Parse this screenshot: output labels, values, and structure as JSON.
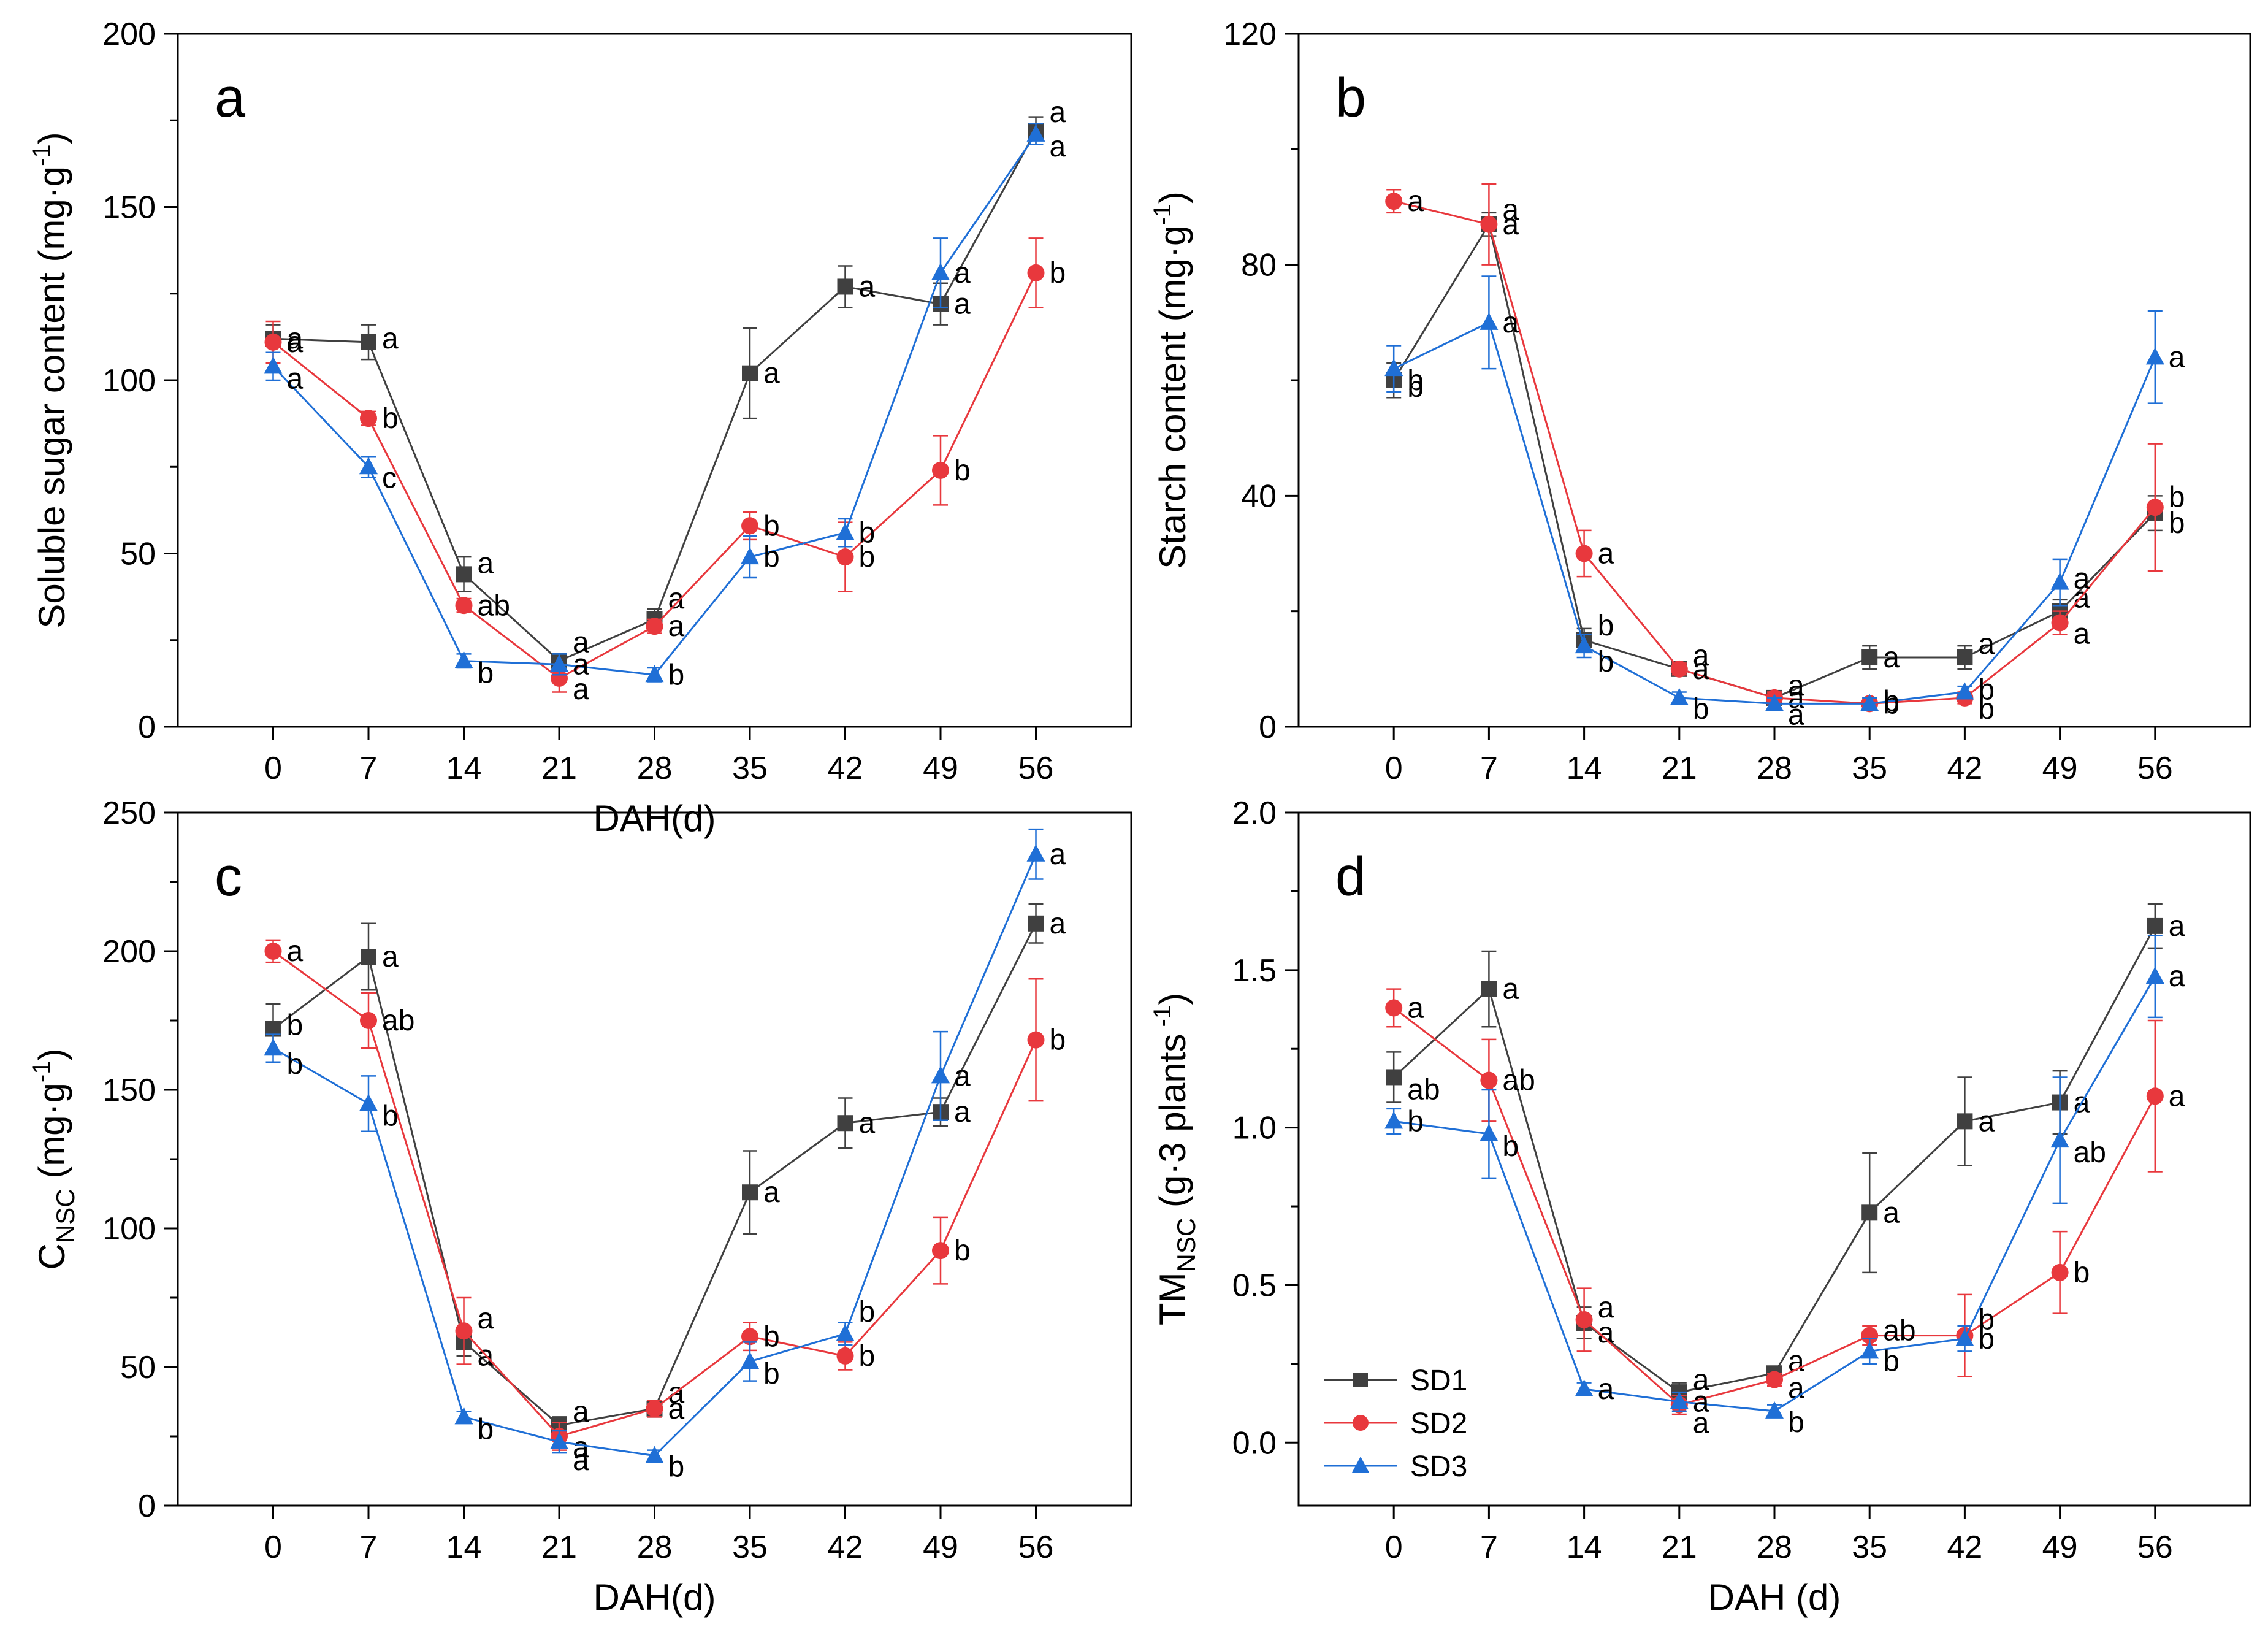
{
  "colors": {
    "SD1": "#404040",
    "SD2": "#e8383d",
    "SD3": "#1f6fd6"
  },
  "legend": [
    "SD1",
    "SD2",
    "SD3"
  ],
  "chart_data": [
    {
      "type": "line",
      "panel": "a",
      "x": [
        0,
        7,
        14,
        21,
        28,
        35,
        42,
        49,
        56
      ],
      "ylim": [
        0,
        200
      ],
      "yticks": [
        0,
        50,
        100,
        150,
        200
      ],
      "ylabel": "Soluble sugar content (mg·g",
      "ylabel_sup": "-1",
      "ylabel_end": ")",
      "xlabel": "DAH(d)",
      "series": [
        {
          "name": "SD1",
          "marker": "square",
          "values": [
            112,
            111,
            44,
            19,
            31,
            102,
            127,
            122,
            172
          ],
          "err": [
            4,
            5,
            5,
            2,
            3,
            13,
            6,
            6,
            4
          ],
          "sig": [
            "a",
            "a",
            "a",
            "a",
            "a",
            "a",
            "a",
            "a",
            "a"
          ]
        },
        {
          "name": "SD2",
          "marker": "circle",
          "values": [
            111,
            89,
            35,
            14,
            29,
            58,
            49,
            74,
            131
          ],
          "err": [
            6,
            2,
            2,
            4,
            2,
            4,
            10,
            10,
            10
          ],
          "sig": [
            "a",
            "b",
            "ab",
            "a",
            "a",
            "b",
            "b",
            "b",
            "b"
          ]
        },
        {
          "name": "SD3",
          "marker": "triangle",
          "values": [
            104,
            75,
            19,
            18,
            15,
            49,
            56,
            131,
            171
          ],
          "err": [
            4,
            3,
            2,
            3,
            2,
            6,
            4,
            10,
            3
          ],
          "sig": [
            "a",
            "c",
            "b",
            "a",
            "b",
            "b",
            "b",
            "a",
            "a"
          ]
        }
      ]
    },
    {
      "type": "line",
      "panel": "b",
      "x": [
        0,
        7,
        14,
        21,
        28,
        35,
        42,
        49,
        56
      ],
      "ylim": [
        0,
        120
      ],
      "yticks": [
        0,
        40,
        80,
        120
      ],
      "ylabel": "Starch content (mg·g",
      "ylabel_sup": "-1",
      "ylabel_end": ")",
      "xlabel": "",
      "series": [
        {
          "name": "SD1",
          "marker": "square",
          "values": [
            60,
            87,
            15,
            10,
            5,
            12,
            12,
            20,
            37
          ],
          "err": [
            3,
            2,
            2,
            1,
            1,
            2,
            2,
            2,
            3
          ],
          "sig": [
            "b",
            "a",
            "b",
            "a",
            "a",
            "a",
            "a",
            "a",
            "b"
          ]
        },
        {
          "name": "SD2",
          "marker": "circle",
          "values": [
            91,
            87,
            30,
            10,
            5,
            4,
            5,
            18,
            38
          ],
          "err": [
            2,
            7,
            4,
            1,
            1,
            1,
            1,
            2,
            11
          ],
          "sig": [
            "a",
            "a",
            "a",
            "a",
            "a",
            "b",
            "b",
            "a",
            "b"
          ]
        },
        {
          "name": "SD3",
          "marker": "triangle",
          "values": [
            62,
            70,
            14,
            5,
            4,
            4,
            6,
            25,
            64
          ],
          "err": [
            4,
            8,
            2,
            1,
            1,
            1,
            1,
            4,
            8
          ],
          "sig": [
            "b",
            "a",
            "b",
            "b",
            "a",
            "b",
            "b",
            "a",
            "a"
          ]
        }
      ]
    },
    {
      "type": "line",
      "panel": "c",
      "x": [
        0,
        7,
        14,
        21,
        28,
        35,
        42,
        49,
        56
      ],
      "ylim": [
        0,
        250
      ],
      "yticks": [
        0,
        50,
        100,
        150,
        200,
        250
      ],
      "ylabel": "C",
      "ylabel_sub": "NSC",
      "ylabel_rest": " (mg·g",
      "ylabel_sup": "-1",
      "ylabel_end": ")",
      "xlabel": "DAH(d)",
      "series": [
        {
          "name": "SD1",
          "marker": "square",
          "values": [
            172,
            198,
            59,
            29,
            35,
            113,
            138,
            142,
            210
          ],
          "err": [
            9,
            12,
            5,
            3,
            3,
            15,
            9,
            5,
            7
          ],
          "sig": [
            "b",
            "a",
            "a",
            "a",
            "a",
            "a",
            "a",
            "a",
            "a"
          ]
        },
        {
          "name": "SD2",
          "marker": "circle",
          "values": [
            200,
            175,
            63,
            25,
            35,
            61,
            54,
            92,
            168
          ],
          "err": [
            4,
            10,
            12,
            5,
            3,
            5,
            5,
            12,
            22
          ],
          "sig": [
            "a",
            "ab",
            "a",
            "a",
            "a",
            "b",
            "b",
            "b",
            "b"
          ]
        },
        {
          "name": "SD3",
          "marker": "triangle",
          "values": [
            165,
            145,
            32,
            23,
            18,
            52,
            62,
            155,
            235
          ],
          "err": [
            5,
            10,
            2,
            4,
            2,
            7,
            4,
            16,
            9
          ],
          "sig": [
            "b",
            "b",
            "b",
            "a",
            "b",
            "b",
            "b",
            "a",
            "a"
          ]
        }
      ]
    },
    {
      "type": "line",
      "panel": "d",
      "x": [
        0,
        7,
        14,
        21,
        28,
        35,
        42,
        49,
        56
      ],
      "ylim": [
        -0.2,
        2.0
      ],
      "yticks": [
        0.0,
        0.5,
        1.0,
        1.5,
        2.0
      ],
      "ytick_labels": [
        "0.0",
        "0.5",
        "1.0",
        "1.5",
        "2.0"
      ],
      "ylabel": "TM",
      "ylabel_sub": "NSC",
      "ylabel_rest": " (g·3 plants",
      "ylabel_sup": " -1",
      "ylabel_end": ")",
      "xlabel": "DAH (d)",
      "series": [
        {
          "name": "SD1",
          "marker": "square",
          "values": [
            1.16,
            1.44,
            0.38,
            0.16,
            0.22,
            0.73,
            1.02,
            1.08,
            1.64
          ],
          "err": [
            0.08,
            0.12,
            0.05,
            0.03,
            0.02,
            0.19,
            0.14,
            0.1,
            0.07
          ],
          "sig": [
            "ab",
            "a",
            "a",
            "a",
            "a",
            "a",
            "a",
            "a",
            "a"
          ]
        },
        {
          "name": "SD2",
          "marker": "circle",
          "values": [
            1.38,
            1.15,
            0.39,
            0.12,
            0.2,
            0.34,
            0.34,
            0.54,
            1.1
          ],
          "err": [
            0.06,
            0.13,
            0.1,
            0.03,
            0.02,
            0.03,
            0.13,
            0.13,
            0.24
          ],
          "sig": [
            "a",
            "ab",
            "a",
            "a",
            "a",
            "ab",
            "b",
            "b",
            "a"
          ]
        },
        {
          "name": "SD3",
          "marker": "triangle",
          "values": [
            1.02,
            0.98,
            0.17,
            0.13,
            0.1,
            0.29,
            0.33,
            0.96,
            1.48
          ],
          "err": [
            0.04,
            0.14,
            0.02,
            0.03,
            0.02,
            0.04,
            0.04,
            0.2,
            0.13
          ],
          "sig": [
            "b",
            "b",
            "a",
            "a",
            "b",
            "b",
            "b",
            "ab",
            "a"
          ]
        }
      ]
    }
  ]
}
